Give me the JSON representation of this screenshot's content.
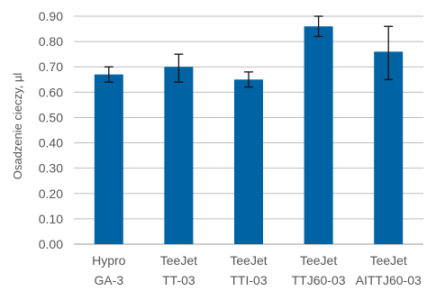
{
  "chart_data": {
    "type": "bar",
    "ylabel": "Osadzenie cieczy, µl",
    "ylim": [
      0,
      0.9
    ],
    "yticks": [
      "0.00",
      "0.10",
      "0.20",
      "0.30",
      "0.40",
      "0.50",
      "0.60",
      "0.70",
      "0.80",
      "0.90"
    ],
    "grid": true,
    "bar_color": "#0063A3",
    "categories": [
      {
        "line1": "Hypro",
        "line2": "GA-3"
      },
      {
        "line1": "TeeJet",
        "line2": "TT-03"
      },
      {
        "line1": "TeeJet",
        "line2": "TTI-03"
      },
      {
        "line1": "TeeJet",
        "line2": "TTJ60-03"
      },
      {
        "line1": "TeeJet",
        "line2": "AITTJ60-03"
      }
    ],
    "values": [
      0.67,
      0.7,
      0.65,
      0.86,
      0.76
    ],
    "error_low": [
      0.64,
      0.64,
      0.62,
      0.82,
      0.65
    ],
    "error_high": [
      0.7,
      0.75,
      0.68,
      0.9,
      0.86
    ]
  }
}
